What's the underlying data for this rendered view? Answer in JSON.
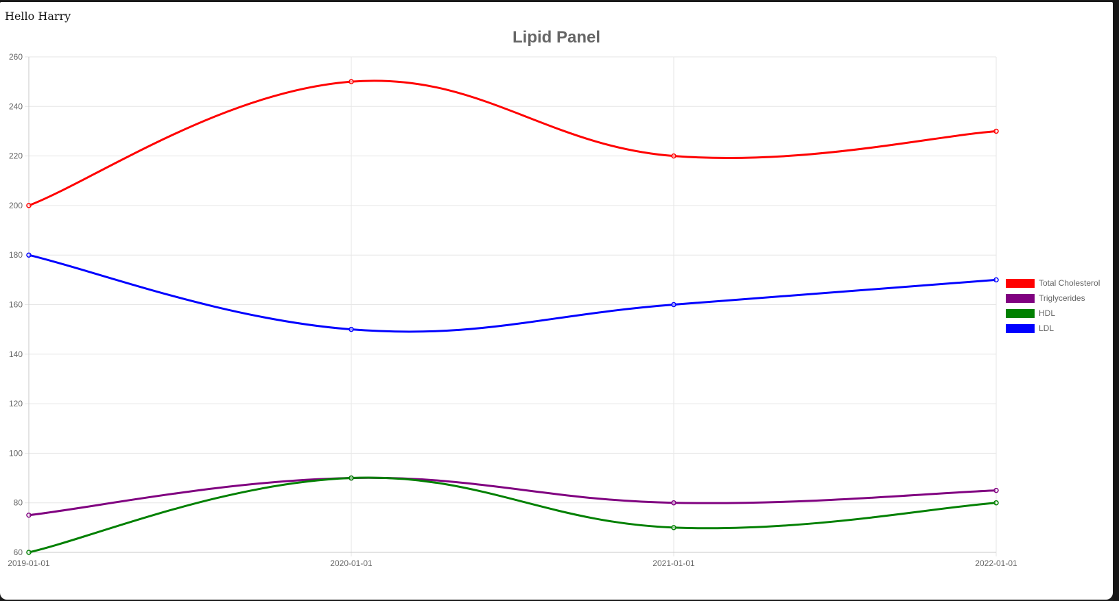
{
  "page": {
    "greeting": "Hello Harry"
  },
  "chart_data": {
    "type": "line",
    "title": "Lipid Panel",
    "xlabel": "",
    "ylabel": "",
    "x": [
      "2019-01-01",
      "2020-01-01",
      "2021-01-01",
      "2022-01-01"
    ],
    "x_tick_labels": [
      "2019-01-01",
      "2020-01-01",
      "2021-01-01",
      "2022-01-01"
    ],
    "ylim": [
      60,
      260
    ],
    "y_ticks": [
      60,
      80,
      100,
      120,
      140,
      160,
      180,
      200,
      220,
      240,
      260
    ],
    "grid": true,
    "legend_position": "right",
    "series": [
      {
        "name": "Total Cholesterol",
        "color": "#ff0000",
        "values": [
          200,
          250,
          220,
          230
        ]
      },
      {
        "name": "Triglycerides",
        "color": "#800080",
        "values": [
          75,
          90,
          80,
          85
        ]
      },
      {
        "name": "HDL",
        "color": "#008000",
        "values": [
          60,
          90,
          70,
          80
        ]
      },
      {
        "name": "LDL",
        "color": "#0000ff",
        "values": [
          180,
          150,
          160,
          170
        ]
      }
    ]
  }
}
